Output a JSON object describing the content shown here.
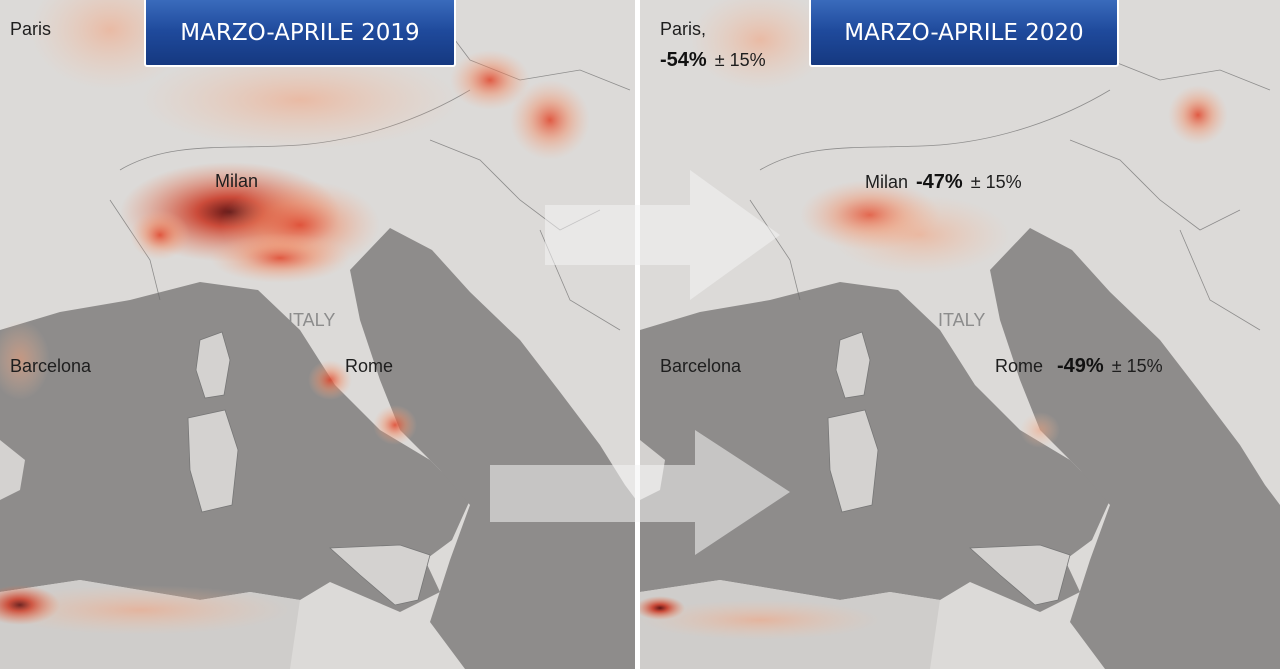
{
  "panels": [
    {
      "title": "MARZO-APRILE 2019",
      "labels": [
        "Paris",
        "Milan",
        "Barcelona",
        "Rome",
        "ITALY"
      ]
    },
    {
      "title": "MARZO-APRILE 2020",
      "cities": [
        {
          "name": "Paris,",
          "change": "-54%",
          "uncertainty": "± 15%"
        },
        {
          "name": "Milan",
          "change": "-47%",
          "uncertainty": "± 15%"
        },
        {
          "name": "Rome",
          "change": "-49%",
          "uncertainty": "± 15%"
        }
      ],
      "labels": [
        "Barcelona",
        "ITALY"
      ]
    }
  ]
}
